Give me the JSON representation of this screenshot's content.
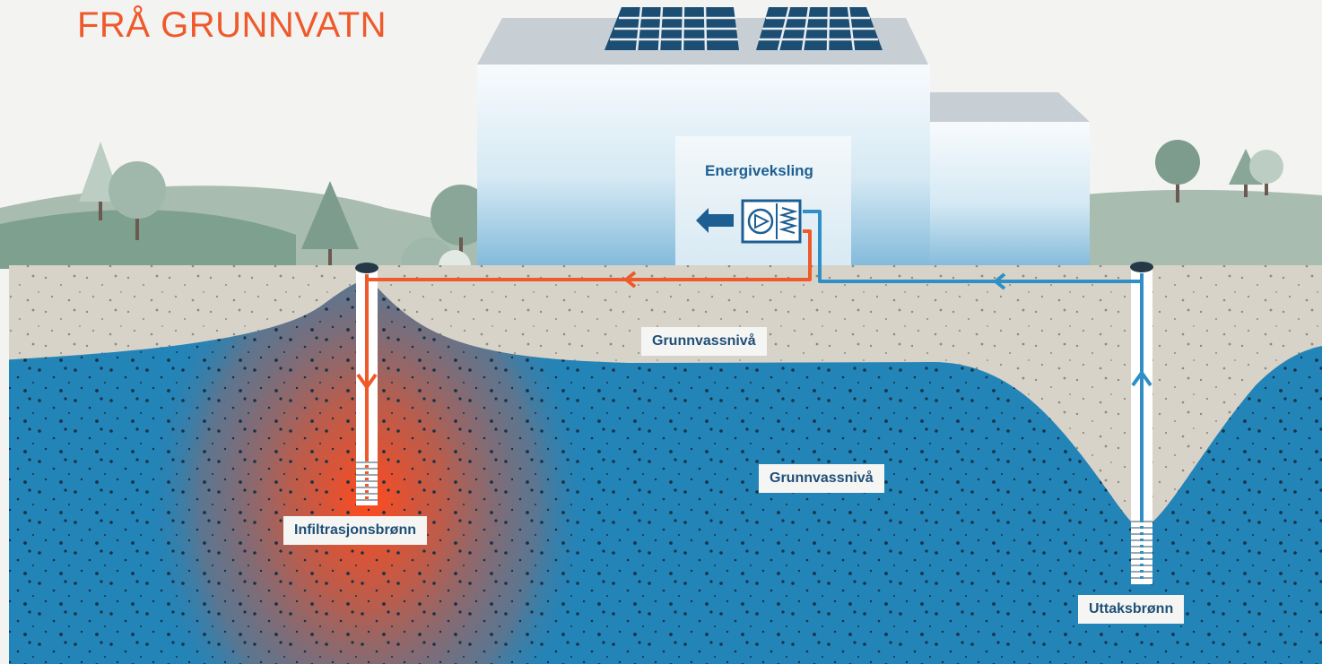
{
  "title": "FRÅ GRUNNVATN",
  "labels": {
    "energy_exchange": "Energiveksling",
    "groundwater_level_upper": "Grunnvassnivå",
    "groundwater_level_lower": "Grunnvassnivå",
    "infiltration_well": "Infiltrasjonsbrønn",
    "extraction_well": "Uttaksbrønn"
  },
  "colors": {
    "title": "#ef5a2c",
    "warm_flow": "#ef5a2c",
    "cold_flow": "#2f8fc6",
    "groundwater": "#2384b8",
    "soil": "#d8d3c8",
    "label_text": "#1f4f76"
  },
  "icons": [
    "heat-exchanger-icon",
    "arrow-left-icon",
    "solar-panel-icon"
  ]
}
